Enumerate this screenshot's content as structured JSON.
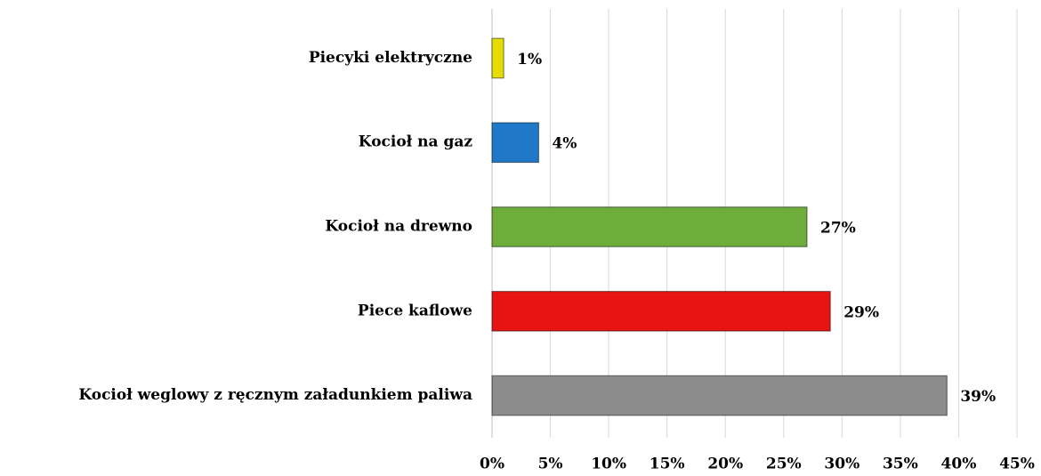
{
  "chart_data": {
    "type": "hbar",
    "categories": [
      "Piecyki elektryczne",
      "Kocioł na gaz",
      "Kocioł na drewno",
      "Piece kaflowe",
      "Kocioł weglowy z ręcznym załadunkiem paliwa"
    ],
    "values": [
      1,
      4,
      27,
      29,
      39
    ],
    "value_labels": [
      "1%",
      "4%",
      "27%",
      "29%",
      "39%"
    ],
    "colors": [
      "#e6dc00",
      "#1f78c8",
      "#6fad3a",
      "#e81414",
      "#8c8c8c"
    ],
    "xlim": [
      0,
      45
    ],
    "xticks": [
      {
        "value": 0,
        "label": "0%"
      },
      {
        "value": 5,
        "label": "5%"
      },
      {
        "value": 10,
        "label": "10%"
      },
      {
        "value": 15,
        "label": "15%"
      },
      {
        "value": 20,
        "label": "20%"
      },
      {
        "value": 25,
        "label": "25%"
      },
      {
        "value": 30,
        "label": "30%"
      },
      {
        "value": 35,
        "label": "35%"
      },
      {
        "value": 40,
        "label": "40%"
      },
      {
        "value": 45,
        "label": "45%"
      }
    ],
    "grid": true
  }
}
